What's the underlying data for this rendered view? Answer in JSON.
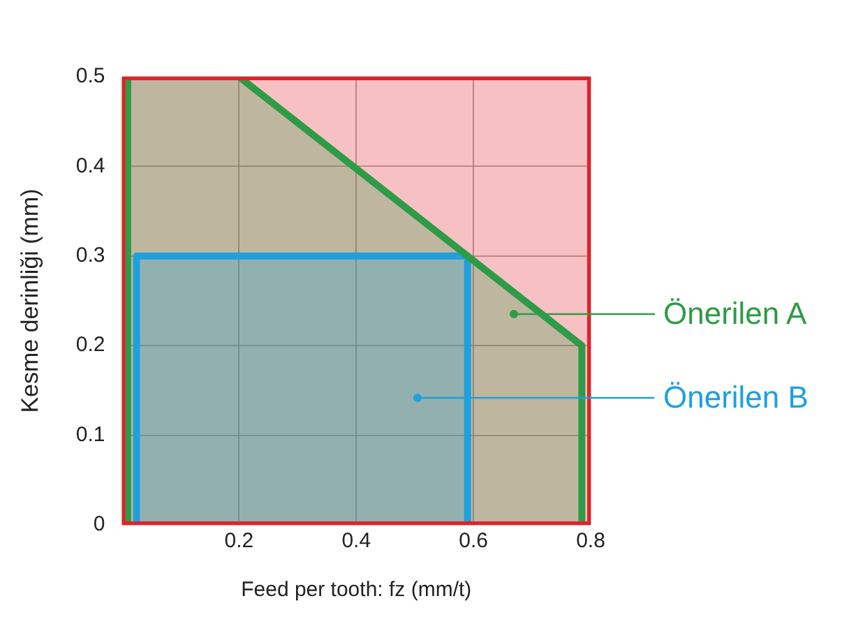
{
  "chart_data": {
    "type": "area",
    "xlabel": "Feed per tooth: fz (mm/t)",
    "ylabel": "Kesme derinliği (mm)",
    "xlim": [
      0,
      0.8
    ],
    "ylim": [
      0,
      0.5
    ],
    "xticks": [
      0.2,
      0.4,
      0.6,
      0.8
    ],
    "yticks": [
      0,
      0.1,
      0.2,
      0.3,
      0.4,
      0.5
    ],
    "grid": true,
    "legend": "right",
    "marker": "none",
    "series": [
      {
        "color": "#e32228",
        "x": [
          0,
          0,
          0.8,
          0.8,
          0
        ],
        "values": [
          0,
          0.5,
          0.5,
          0,
          0
        ]
      },
      {
        "name": "Önerilen A",
        "color": "#2e9b47",
        "x": [
          0.01,
          0.01,
          0.2,
          0.785,
          0.785,
          0.01
        ],
        "values": [
          0,
          0.5,
          0.5,
          0.2,
          0,
          0
        ]
      },
      {
        "name": "Önerilen B",
        "color": "#1ea0dc",
        "x": [
          0.025,
          0.025,
          0.59,
          0.59,
          0.025
        ],
        "values": [
          0,
          0.3,
          0.3,
          0,
          0
        ]
      }
    ]
  }
}
